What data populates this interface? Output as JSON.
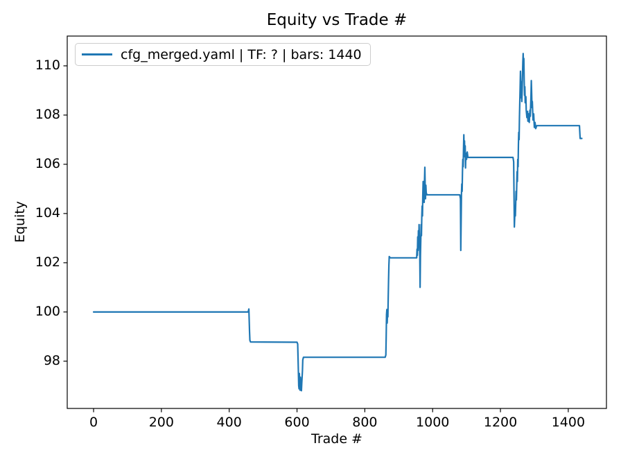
{
  "figure": {
    "title": "Equity vs Trade #",
    "xlabel": "Trade #",
    "ylabel": "Equity"
  },
  "legend": {
    "label": "cfg_merged.yaml | TF: ? | bars: 1440",
    "line_color": "#1f77b4"
  },
  "chart_data": {
    "type": "line",
    "title": "Equity vs Trade #",
    "xlabel": "Trade #",
    "ylabel": "Equity",
    "grid": false,
    "legend_position": "upper-left",
    "xlim": [
      -77.7,
      1512.6
    ],
    "ylim": [
      96.08,
      111.21
    ],
    "xticks": [
      0,
      200,
      400,
      600,
      800,
      1000,
      1200,
      1400
    ],
    "yticks": [
      98,
      100,
      102,
      104,
      106,
      108,
      110
    ],
    "axis_color": "#000000",
    "series": [
      {
        "name": "cfg_merged.yaml | TF: ? | bars: 1440",
        "color": "#1f77b4",
        "points": [
          [
            0,
            100.0
          ],
          [
            456,
            100.0
          ],
          [
            458,
            100.12
          ],
          [
            460,
            99.2
          ],
          [
            461,
            98.85
          ],
          [
            463,
            98.78
          ],
          [
            600,
            98.77
          ],
          [
            602,
            98.7
          ],
          [
            604,
            97.6
          ],
          [
            605,
            97.0
          ],
          [
            606,
            96.88
          ],
          [
            607,
            97.5
          ],
          [
            608,
            97.1
          ],
          [
            609,
            96.82
          ],
          [
            610,
            97.35
          ],
          [
            611,
            96.95
          ],
          [
            612,
            97.25
          ],
          [
            613,
            96.8
          ],
          [
            614,
            97.1
          ],
          [
            616,
            97.6
          ],
          [
            617,
            98.05
          ],
          [
            619,
            98.16
          ],
          [
            860,
            98.16
          ],
          [
            862,
            98.25
          ],
          [
            863,
            99.0
          ],
          [
            864,
            99.9
          ],
          [
            865,
            100.1
          ],
          [
            866,
            99.55
          ],
          [
            867,
            100.05
          ],
          [
            868,
            99.8
          ],
          [
            869,
            100.6
          ],
          [
            870,
            101.3
          ],
          [
            871,
            101.9
          ],
          [
            872,
            102.25
          ],
          [
            875,
            102.2
          ],
          [
            953,
            102.2
          ],
          [
            954,
            102.55
          ],
          [
            955,
            102.3
          ],
          [
            956,
            103.05
          ],
          [
            957,
            102.5
          ],
          [
            958,
            103.3
          ],
          [
            959,
            102.7
          ],
          [
            960,
            103.55
          ],
          [
            961,
            102.95
          ],
          [
            962,
            102.45
          ],
          [
            963,
            101.0
          ],
          [
            964,
            102.3
          ],
          [
            965,
            102.9
          ],
          [
            966,
            103.55
          ],
          [
            967,
            103.1
          ],
          [
            968,
            103.85
          ],
          [
            969,
            104.3
          ],
          [
            970,
            103.9
          ],
          [
            971,
            104.75
          ],
          [
            972,
            105.3
          ],
          [
            973,
            104.6
          ],
          [
            974,
            105.05
          ],
          [
            975,
            104.45
          ],
          [
            976,
            105.35
          ],
          [
            977,
            105.88
          ],
          [
            978,
            105.05
          ],
          [
            979,
            104.6
          ],
          [
            980,
            105.15
          ],
          [
            981,
            104.85
          ],
          [
            983,
            104.76
          ],
          [
            1080,
            104.76
          ],
          [
            1082,
            104.6
          ],
          [
            1083,
            102.5
          ],
          [
            1085,
            104.8
          ],
          [
            1086,
            105.2
          ],
          [
            1087,
            104.9
          ],
          [
            1088,
            105.7
          ],
          [
            1089,
            106.2
          ],
          [
            1090,
            105.9
          ],
          [
            1091,
            106.6
          ],
          [
            1092,
            107.2
          ],
          [
            1093,
            106.5
          ],
          [
            1094,
            106.95
          ],
          [
            1095,
            106.3
          ],
          [
            1096,
            106.75
          ],
          [
            1097,
            105.85
          ],
          [
            1098,
            106.45
          ],
          [
            1100,
            106.2
          ],
          [
            1102,
            106.5
          ],
          [
            1104,
            106.28
          ],
          [
            1107,
            106.28
          ],
          [
            1237,
            106.28
          ],
          [
            1239,
            106.1
          ],
          [
            1241,
            103.45
          ],
          [
            1243,
            104.2
          ],
          [
            1244,
            103.9
          ],
          [
            1246,
            104.9
          ],
          [
            1247,
            104.55
          ],
          [
            1249,
            105.7
          ],
          [
            1250,
            105.3
          ],
          [
            1251,
            106.2
          ],
          [
            1252,
            105.9
          ],
          [
            1253,
            106.8
          ],
          [
            1254,
            107.3
          ],
          [
            1255,
            107.0
          ],
          [
            1256,
            107.9
          ],
          [
            1257,
            108.5
          ],
          [
            1258,
            109.1
          ],
          [
            1259,
            109.78
          ],
          [
            1260,
            109.2
          ],
          [
            1261,
            108.7
          ],
          [
            1262,
            109.35
          ],
          [
            1263,
            108.55
          ],
          [
            1264,
            109.0
          ],
          [
            1265,
            109.6
          ],
          [
            1266,
            110.15
          ],
          [
            1267,
            110.5
          ],
          [
            1268,
            109.9
          ],
          [
            1269,
            110.3
          ],
          [
            1270,
            109.4
          ],
          [
            1271,
            108.8
          ],
          [
            1272,
            109.15
          ],
          [
            1273,
            108.5
          ],
          [
            1275,
            108.75
          ],
          [
            1276,
            108.2
          ],
          [
            1278,
            107.9
          ],
          [
            1280,
            108.15
          ],
          [
            1281,
            107.75
          ],
          [
            1283,
            108.05
          ],
          [
            1285,
            107.7
          ],
          [
            1287,
            108.2
          ],
          [
            1288,
            107.95
          ],
          [
            1290,
            108.75
          ],
          [
            1291,
            109.4
          ],
          [
            1292,
            108.9
          ],
          [
            1293,
            108.3
          ],
          [
            1294,
            108.55
          ],
          [
            1296,
            107.8
          ],
          [
            1298,
            108.05
          ],
          [
            1300,
            107.5
          ],
          [
            1302,
            107.7
          ],
          [
            1304,
            107.45
          ],
          [
            1307,
            107.57
          ],
          [
            1310,
            107.57
          ],
          [
            1433,
            107.57
          ],
          [
            1435,
            107.05
          ],
          [
            1440,
            107.05
          ]
        ]
      }
    ]
  }
}
